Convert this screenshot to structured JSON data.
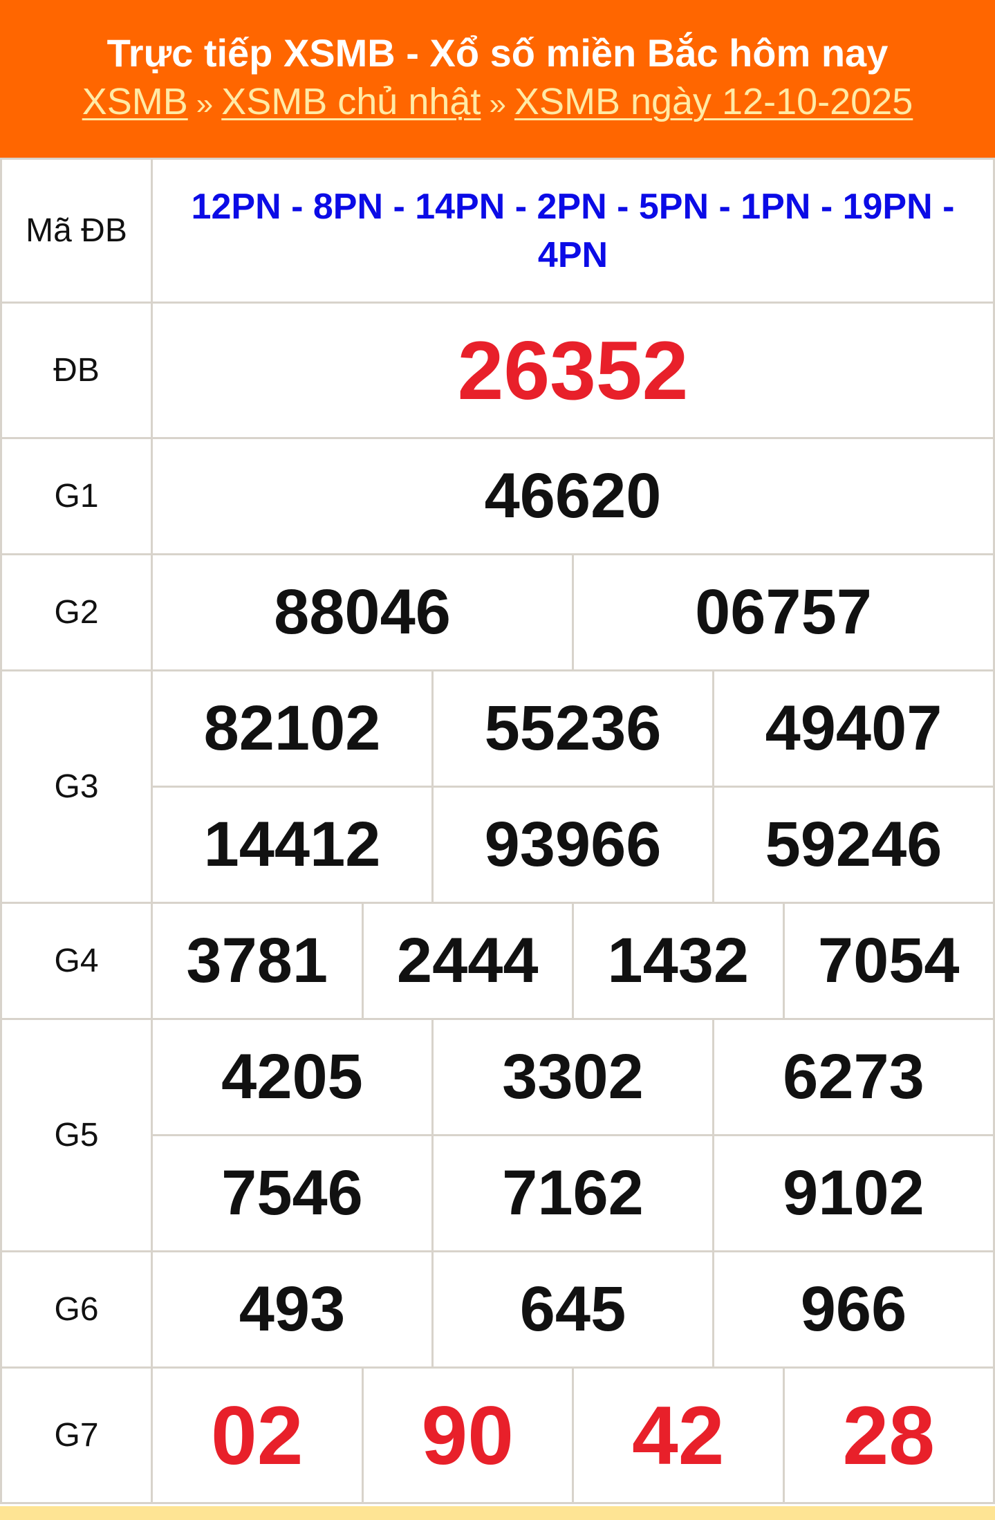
{
  "header": {
    "title": "Trực tiếp XSMB - Xổ số miền Bắc hôm nay",
    "breadcrumb": [
      {
        "label": "XSMB"
      },
      {
        "label": "XSMB chủ nhật"
      },
      {
        "label": "XSMB ngày 12-10-2025"
      }
    ],
    "separator": "»"
  },
  "results": {
    "ma_db": {
      "label": "Mã ĐB",
      "value": "12PN - 8PN - 14PN - 2PN - 5PN - 1PN - 19PN - 4PN"
    },
    "db": {
      "label": "ĐB",
      "value": "26352"
    },
    "g1": {
      "label": "G1",
      "values": [
        "46620"
      ]
    },
    "g2": {
      "label": "G2",
      "values": [
        "88046",
        "06757"
      ]
    },
    "g3": {
      "label": "G3",
      "values": [
        "82102",
        "55236",
        "49407",
        "14412",
        "93966",
        "59246"
      ]
    },
    "g4": {
      "label": "G4",
      "values": [
        "3781",
        "2444",
        "1432",
        "7054"
      ]
    },
    "g5": {
      "label": "G5",
      "values": [
        "4205",
        "3302",
        "6273",
        "7546",
        "7162",
        "9102"
      ]
    },
    "g6": {
      "label": "G6",
      "values": [
        "493",
        "645",
        "966"
      ]
    },
    "g7": {
      "label": "G7",
      "values": [
        "02",
        "90",
        "42",
        "28"
      ]
    }
  },
  "colors": {
    "header_bg": "#ff6600",
    "special_red": "#e8202a",
    "code_blue": "#0b0be6"
  }
}
